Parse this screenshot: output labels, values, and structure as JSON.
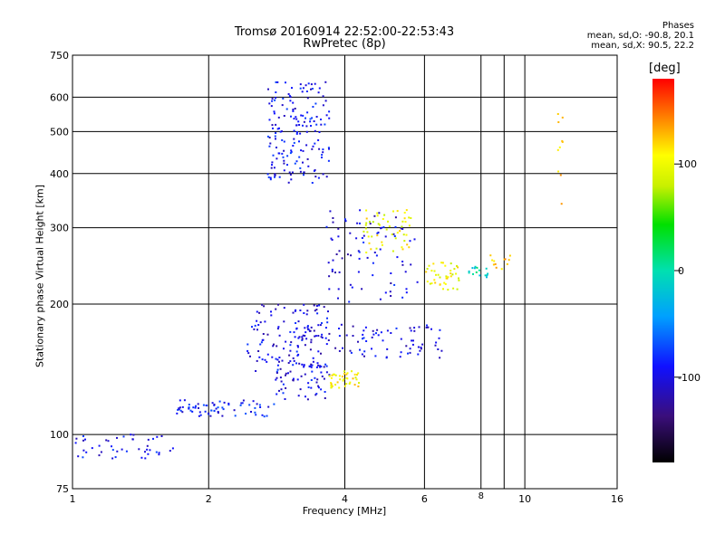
{
  "header": {
    "title_line1": "Tromsø 20160914 22:52:00-22:53:43",
    "title_line2": "RwPretec (8p)",
    "phases_title": "Phases",
    "phases_o": "mean, sd,O: -90.8, 20.1",
    "phases_x": "mean, sd,X:  90.5, 22.2"
  },
  "colorbar": {
    "unit_label": "[deg]",
    "range": [
      -180,
      180
    ],
    "ticks": [
      {
        "value": 100,
        "label": "100"
      },
      {
        "value": 0,
        "label": "0"
      },
      {
        "value": -100,
        "label": "-100"
      }
    ]
  },
  "chart_data": {
    "type": "scatter",
    "title": "Tromsø 20160914 22:52:00-22:53:43",
    "subtitle": "RwPretec (8p)",
    "xlabel": "Frequency [MHz]",
    "ylabel": "Stationary phase Virtual Height [km]",
    "xscale": "log",
    "yscale": "log",
    "xlim": [
      1,
      16
    ],
    "ylim": [
      75,
      750
    ],
    "grid": true,
    "xticks_major": [
      1,
      2,
      4,
      6,
      10,
      16
    ],
    "xticks_major_labels": [
      "1",
      "2",
      "4",
      "6",
      "10",
      "16"
    ],
    "xticks_minor": [
      8
    ],
    "xticks_minor_labels": [
      "8"
    ],
    "xticks_grid": [
      2,
      4,
      6,
      8,
      9,
      10
    ],
    "yticks": [
      75,
      100,
      200,
      300,
      400,
      500,
      600,
      750
    ],
    "ytick_labels": [
      "75",
      "100",
      "200",
      "300",
      "400",
      "500",
      "600",
      "750"
    ],
    "colorscale": "phase [deg], -180 (black) to 180 (red)",
    "clusters": [
      {
        "description": "low-frequency E-region trace",
        "x": [
          1.0,
          1.75
        ],
        "y": [
          88,
          100
        ],
        "phase": -95,
        "count": 45
      },
      {
        "description": "low branch",
        "x": [
          1.7,
          2.8
        ],
        "y": [
          110,
          120
        ],
        "phase": -90,
        "count": 70
      },
      {
        "description": "rising trace",
        "x": [
          2.8,
          3.7
        ],
        "y": [
          120,
          150
        ],
        "phase": -95,
        "count": 60
      },
      {
        "description": "dense mid cluster",
        "x": [
          2.4,
          3.7
        ],
        "y": [
          140,
          200
        ],
        "phase": -100,
        "count": 140
      },
      {
        "description": "upper spread",
        "x": [
          2.7,
          3.7
        ],
        "y": [
          380,
          650
        ],
        "phase": -95,
        "count": 170
      },
      {
        "description": "rising trace",
        "x": [
          3.6,
          5.8
        ],
        "y": [
          200,
          330
        ],
        "phase": -100,
        "count": 80
      },
      {
        "description": "O trace",
        "x": [
          3.8,
          6.6
        ],
        "y": [
          150,
          180
        ],
        "phase": -100,
        "count": 70
      },
      {
        "description": "X trace low",
        "x": [
          3.7,
          4.3
        ],
        "y": [
          128,
          140
        ],
        "phase": 105,
        "count": 40
      },
      {
        "description": "X trace mid",
        "x": [
          4.4,
          5.6
        ],
        "y": [
          260,
          330
        ],
        "phase": 100,
        "count": 50
      },
      {
        "description": "X trace high",
        "x": [
          6.0,
          7.2
        ],
        "y": [
          215,
          250
        ],
        "phase": 100,
        "count": 40
      },
      {
        "description": "cyan cusp",
        "x": [
          7.5,
          8.3
        ],
        "y": [
          230,
          245
        ],
        "phase": -5,
        "count": 15
      },
      {
        "description": "orange cusp",
        "x": [
          8.4,
          9.3
        ],
        "y": [
          240,
          260
        ],
        "phase": 130,
        "count": 12
      },
      {
        "description": "scattered high points",
        "x": [
          11.8,
          12.2
        ],
        "y": [
          330,
          620
        ],
        "phase": 120,
        "count": 10
      }
    ]
  }
}
